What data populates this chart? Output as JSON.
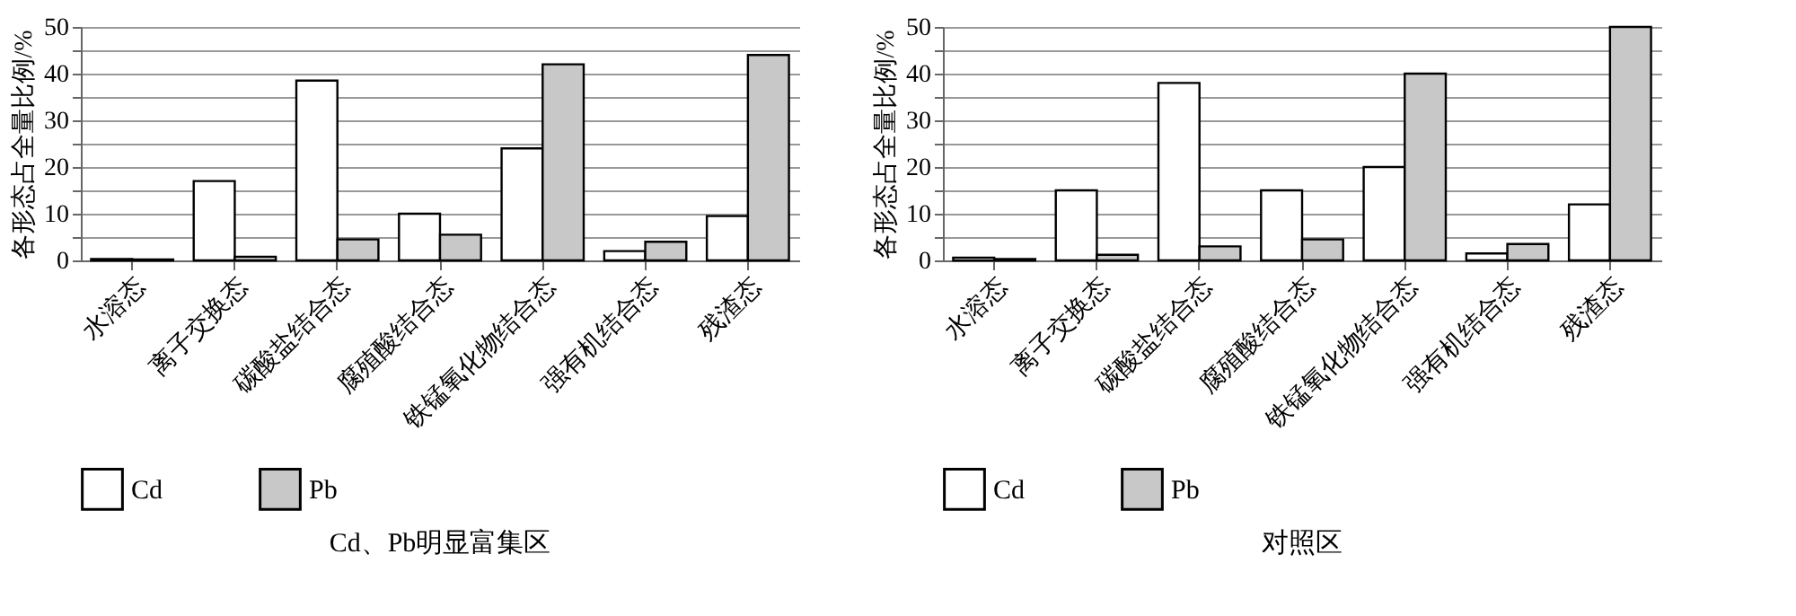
{
  "chart_data": [
    {
      "type": "bar",
      "title": "Cd、Pb明显富集区",
      "ylabel": "各形态占全量比例/%",
      "categories": [
        "水溶态",
        "离子交换态",
        "碳酸盐结合态",
        "腐殖酸结合态",
        "铁锰氧化物结合态",
        "强有机结合态",
        "残渣态"
      ],
      "series": [
        {
          "name": "Cd",
          "color": "#ffffff",
          "values": [
            0.3,
            17,
            38.5,
            10,
            24,
            2,
            9.5
          ]
        },
        {
          "name": "Pb",
          "color": "#c8c8c8",
          "values": [
            0.2,
            0.8,
            4.5,
            5.5,
            42,
            4,
            44
          ]
        }
      ],
      "ylim": [
        0,
        50
      ],
      "yticks": [
        0,
        {
          "value": 5,
          "label": null
        },
        10,
        {
          "value": 15,
          "label": null
        },
        20,
        {
          "value": 25,
          "label": null
        },
        30,
        {
          "value": 35,
          "label": null
        },
        40,
        {
          "value": 45,
          "label": null
        },
        50
      ],
      "grid": "y",
      "legend": "bottom"
    },
    {
      "type": "bar",
      "title": "对照区",
      "ylabel": "各形态占全量比例/%",
      "categories": [
        "水溶态",
        "离子交换态",
        "碳酸盐结合态",
        "腐殖酸结合态",
        "铁锰氧化物结合态",
        "强有机结合态",
        "残渣态"
      ],
      "series": [
        {
          "name": "Cd",
          "color": "#ffffff",
          "values": [
            0.6,
            15,
            38,
            15,
            20,
            1.5,
            12
          ]
        },
        {
          "name": "Pb",
          "color": "#c8c8c8",
          "values": [
            0.3,
            1.2,
            3,
            4.5,
            40,
            3.5,
            50
          ]
        }
      ],
      "ylim": [
        0,
        50
      ],
      "yticks": [
        0,
        {
          "value": 5,
          "label": null
        },
        10,
        {
          "value": 15,
          "label": null
        },
        20,
        {
          "value": 25,
          "label": null
        },
        30,
        {
          "value": 35,
          "label": null
        },
        40,
        {
          "value": 45,
          "label": null
        },
        50
      ],
      "grid": "y",
      "legend": "bottom"
    }
  ]
}
